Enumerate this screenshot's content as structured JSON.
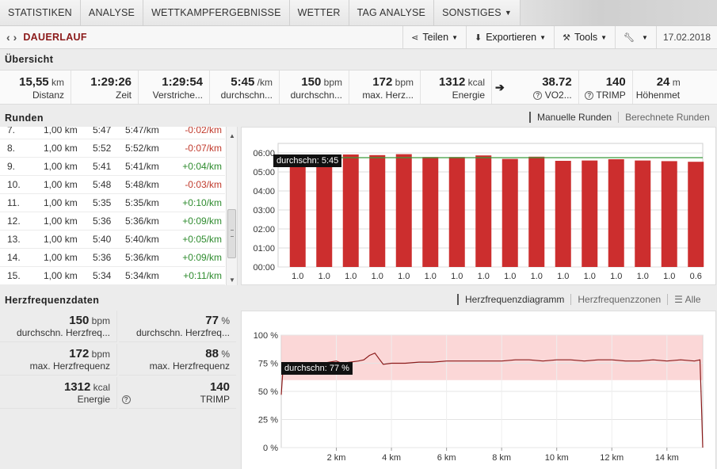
{
  "nav": {
    "tabs": [
      {
        "label": "STATISTIKEN",
        "chevron": false
      },
      {
        "label": "ANALYSE",
        "chevron": false
      },
      {
        "label": "WETTKAMPFERGEBNISSE",
        "chevron": false
      },
      {
        "label": "WETTER",
        "chevron": false
      },
      {
        "label": "TAG ANALYSE",
        "chevron": false
      },
      {
        "label": "SONSTIGES",
        "chevron": true
      }
    ]
  },
  "titlebar": {
    "title": "DAUERLAUF",
    "share": "Teilen",
    "export": "Exportieren",
    "tools": "Tools",
    "date": "17.02.2018"
  },
  "overview": {
    "heading": "Übersicht",
    "stats": [
      {
        "value": "15,55",
        "unit": "km",
        "label": "Distanz"
      },
      {
        "value": "1:29:26",
        "unit": "",
        "label": "Zeit"
      },
      {
        "value": "1:29:54",
        "unit": "",
        "label": "Verstriche..."
      },
      {
        "value": "5:45",
        "unit": "/km",
        "label": "durchschn..."
      },
      {
        "value": "150",
        "unit": "bpm",
        "label": "durchschn..."
      },
      {
        "value": "172",
        "unit": "bpm",
        "label": "max. Herz..."
      },
      {
        "value": "1312",
        "unit": "kcal",
        "label": "Energie"
      },
      {
        "value": "38.72",
        "unit": "",
        "label": "VO2..."
      },
      {
        "value": "140",
        "unit": "",
        "label": "TRIMP"
      },
      {
        "value": "24",
        "unit": "m",
        "label": "Höhenmet..."
      }
    ]
  },
  "laps": {
    "heading": "Runden",
    "toggle_manual": "Manuelle Runden",
    "toggle_calc": "Berechnete Runden",
    "rows": [
      {
        "n": "7.",
        "dist": "1,00 km",
        "time": "5:47",
        "pace": "5:47/km",
        "diff": "-0:02/km",
        "sign": "neg"
      },
      {
        "n": "8.",
        "dist": "1,00 km",
        "time": "5:52",
        "pace": "5:52/km",
        "diff": "-0:07/km",
        "sign": "neg"
      },
      {
        "n": "9.",
        "dist": "1,00 km",
        "time": "5:41",
        "pace": "5:41/km",
        "diff": "+0:04/km",
        "sign": "pos"
      },
      {
        "n": "10.",
        "dist": "1,00 km",
        "time": "5:48",
        "pace": "5:48/km",
        "diff": "-0:03/km",
        "sign": "neg"
      },
      {
        "n": "11.",
        "dist": "1,00 km",
        "time": "5:35",
        "pace": "5:35/km",
        "diff": "+0:10/km",
        "sign": "pos"
      },
      {
        "n": "12.",
        "dist": "1,00 km",
        "time": "5:36",
        "pace": "5:36/km",
        "diff": "+0:09/km",
        "sign": "pos"
      },
      {
        "n": "13.",
        "dist": "1,00 km",
        "time": "5:40",
        "pace": "5:40/km",
        "diff": "+0:05/km",
        "sign": "pos"
      },
      {
        "n": "14.",
        "dist": "1,00 km",
        "time": "5:36",
        "pace": "5:36/km",
        "diff": "+0:09/km",
        "sign": "pos"
      },
      {
        "n": "15.",
        "dist": "1,00 km",
        "time": "5:34",
        "pace": "5:34/km",
        "diff": "+0:11/km",
        "sign": "pos"
      }
    ],
    "scroll_fraction": 0.55
  },
  "hr": {
    "heading": "Herzfrequenzdaten",
    "toggle_diagram": "Herzfrequenzdiagramm",
    "toggle_zones": "Herzfrequenzzonen",
    "toggle_all": "Alle",
    "cells": [
      {
        "value": "150",
        "unit": "bpm",
        "label": "durchschn. Herzfreq..."
      },
      {
        "value": "77",
        "unit": "%",
        "label": "durchschn. Herzfreq..."
      },
      {
        "value": "172",
        "unit": "bpm",
        "label": "max. Herzfrequenz"
      },
      {
        "value": "88",
        "unit": "%",
        "label": "max. Herzfrequenz"
      },
      {
        "value": "1312",
        "unit": "kcal",
        "label": "Energie"
      },
      {
        "value": "140",
        "unit": "",
        "label": "TRIMP"
      }
    ]
  },
  "colors": {
    "bar": "#cc2e2e",
    "avg_line": "#3a9a3a",
    "hr_line": "#8b1a1a",
    "hr_band": "#f9c9c9",
    "accent": "#8b1a1a"
  },
  "chart_data": [
    {
      "type": "bar",
      "categories": [
        "1.0",
        "1.0",
        "1.0",
        "1.0",
        "1.0",
        "1.0",
        "1.0",
        "1.0",
        "1.0",
        "1.0",
        "1.0",
        "1.0",
        "1.0",
        "1.0",
        "1.0",
        "0.6"
      ],
      "values_sec": [
        345,
        343,
        355,
        353,
        356,
        347,
        347,
        352,
        341,
        348,
        335,
        336,
        340,
        336,
        334,
        332
      ],
      "yticks": [
        "00:00",
        "01:00",
        "02:00",
        "03:00",
        "04:00",
        "05:00",
        "06:00"
      ],
      "ylim_sec": [
        0,
        390
      ],
      "avg_sec": 345,
      "avg_label": "durchschn: 5:45",
      "grid": true
    },
    {
      "type": "line",
      "x_km": [
        0,
        0.05,
        0.15,
        0.3,
        0.6,
        1.0,
        1.5,
        2.0,
        2.2,
        2.5,
        2.8,
        3.0,
        3.2,
        3.4,
        3.55,
        3.7,
        4.0,
        4.5,
        5.0,
        5.5,
        6.0,
        6.5,
        7.0,
        7.5,
        8.0,
        8.5,
        9.0,
        9.5,
        10.0,
        10.5,
        11.0,
        11.5,
        12.0,
        12.5,
        13.0,
        13.5,
        14.0,
        14.5,
        15.0,
        15.2,
        15.25,
        15.3
      ],
      "y_pct": [
        47,
        65,
        70,
        73,
        75,
        75,
        75,
        77,
        75,
        76,
        77,
        78,
        82,
        84,
        79,
        74,
        75,
        75,
        76,
        76,
        77,
        77,
        77,
        77,
        77,
        78,
        78,
        77,
        78,
        78,
        77,
        78,
        78,
        77,
        77,
        78,
        77,
        78,
        77,
        78,
        40,
        0
      ],
      "xticks": [
        "2 km",
        "4 km",
        "6 km",
        "8 km",
        "10 km",
        "12 km",
        "14 km"
      ],
      "xtick_values": [
        2,
        4,
        6,
        8,
        10,
        12,
        14
      ],
      "xlim": [
        0,
        15.3
      ],
      "yticks": [
        "0 %",
        "25 %",
        "50 %",
        "75 %",
        "100 %"
      ],
      "ylim": [
        0,
        100
      ],
      "band": [
        60,
        100
      ],
      "avg": 77,
      "avg_label": "durchschn: 77 %",
      "grid": true
    }
  ]
}
